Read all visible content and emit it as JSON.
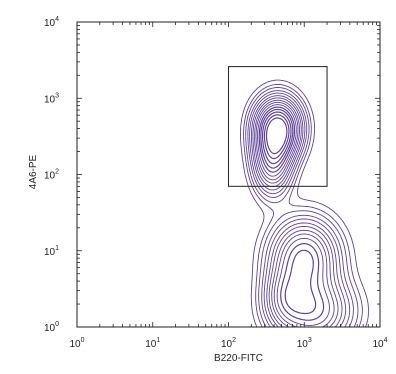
{
  "chart_data": {
    "type": "contour",
    "x_scale": "log",
    "y_scale": "log",
    "xlim": [
      1,
      10000
    ],
    "ylim": [
      1,
      10000
    ],
    "xlabel": "B220-FITC",
    "ylabel": "4A6-PE",
    "x_ticks": [
      {
        "value": 1,
        "base": "10",
        "exp": "0"
      },
      {
        "value": 10,
        "base": "10",
        "exp": "1"
      },
      {
        "value": 100,
        "base": "10",
        "exp": "2"
      },
      {
        "value": 1000,
        "base": "10",
        "exp": "3"
      },
      {
        "value": 10000,
        "base": "10",
        "exp": "4"
      }
    ],
    "y_ticks": [
      {
        "value": 1,
        "base": "10",
        "exp": "0"
      },
      {
        "value": 10,
        "base": "10",
        "exp": "1"
      },
      {
        "value": 100,
        "base": "10",
        "exp": "2"
      },
      {
        "value": 1000,
        "base": "10",
        "exp": "3"
      },
      {
        "value": 10000,
        "base": "10",
        "exp": "4"
      }
    ],
    "gate": {
      "x_min": 100,
      "x_max": 2000,
      "y_min": 70,
      "y_max": 2600
    },
    "contour_color": "#4b2d8c",
    "populations": [
      {
        "center_x": 450,
        "center_y": 400,
        "spread_x": 0.19,
        "spread_y": 0.25,
        "peak": 1.0
      },
      {
        "center_x": 380,
        "center_y": 150,
        "spread_x": 0.16,
        "spread_y": 0.28,
        "peak": 0.55
      },
      {
        "center_x": 1000,
        "center_y": 8,
        "spread_x": 0.28,
        "spread_y": 0.32,
        "peak": 0.65
      },
      {
        "center_x": 1300,
        "center_y": 1.6,
        "spread_x": 0.32,
        "spread_y": 0.28,
        "peak": 0.55
      },
      {
        "center_x": 550,
        "center_y": 2.5,
        "spread_x": 0.18,
        "spread_y": 0.25,
        "peak": 0.28
      }
    ]
  }
}
